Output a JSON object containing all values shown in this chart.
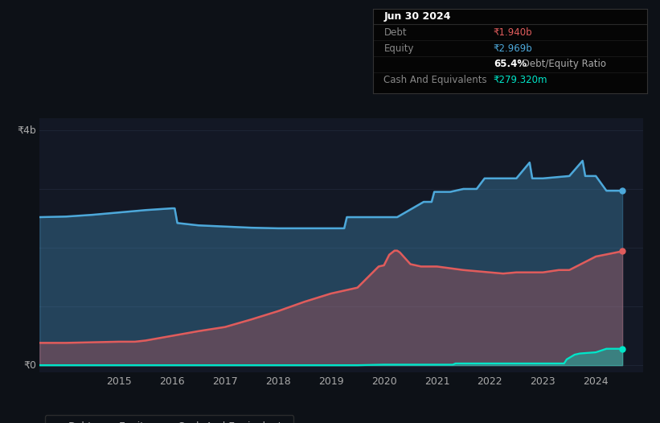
{
  "bg_color": "#0d1117",
  "plot_bg_color": "#131825",
  "debt_color": "#e05c5c",
  "equity_color": "#4da8da",
  "cash_color": "#00e5c8",
  "grid_color": "#1e2535",
  "text_color": "#aaaaaa",
  "ylabel_4b": "₹4b",
  "ylabel_0": "₹0",
  "xlim": [
    2013.5,
    2024.9
  ],
  "ylim": [
    -0.12,
    4.2
  ],
  "xticks": [
    2015,
    2016,
    2017,
    2018,
    2019,
    2020,
    2021,
    2022,
    2023,
    2024
  ],
  "yticks_grid": [
    0.0,
    1.0,
    2.0,
    3.0,
    4.0
  ],
  "ytick_4b_val": 4.0,
  "ytick_0_val": 0.0,
  "debt_x": [
    2013.5,
    2014.0,
    2014.5,
    2015.0,
    2015.3,
    2015.5,
    2016.0,
    2016.5,
    2017.0,
    2017.5,
    2018.0,
    2018.5,
    2019.0,
    2019.3,
    2019.5,
    2019.7,
    2019.9,
    2020.0,
    2020.1,
    2020.2,
    2020.25,
    2020.3,
    2020.5,
    2020.7,
    2021.0,
    2021.5,
    2022.0,
    2022.25,
    2022.5,
    2023.0,
    2023.3,
    2023.5,
    2024.0,
    2024.5
  ],
  "debt_y": [
    0.38,
    0.38,
    0.39,
    0.4,
    0.4,
    0.42,
    0.5,
    0.58,
    0.65,
    0.78,
    0.92,
    1.08,
    1.22,
    1.28,
    1.32,
    1.5,
    1.68,
    1.7,
    1.88,
    1.95,
    1.95,
    1.92,
    1.72,
    1.68,
    1.68,
    1.62,
    1.58,
    1.56,
    1.58,
    1.58,
    1.62,
    1.62,
    1.85,
    1.94
  ],
  "equity_x": [
    2013.5,
    2014.0,
    2014.5,
    2015.0,
    2015.5,
    2016.0,
    2016.05,
    2016.1,
    2016.5,
    2017.0,
    2017.5,
    2018.0,
    2018.5,
    2019.0,
    2019.25,
    2019.3,
    2019.5,
    2019.75,
    2020.0,
    2020.1,
    2020.25,
    2020.5,
    2020.75,
    2020.9,
    2020.95,
    2021.0,
    2021.25,
    2021.5,
    2021.75,
    2021.9,
    2021.95,
    2022.0,
    2022.5,
    2022.75,
    2022.8,
    2023.0,
    2023.5,
    2023.75,
    2023.8,
    2024.0,
    2024.2,
    2024.5
  ],
  "equity_y": [
    2.52,
    2.53,
    2.56,
    2.6,
    2.64,
    2.67,
    2.67,
    2.42,
    2.38,
    2.36,
    2.34,
    2.33,
    2.33,
    2.33,
    2.33,
    2.52,
    2.52,
    2.52,
    2.52,
    2.52,
    2.52,
    2.65,
    2.78,
    2.78,
    2.95,
    2.95,
    2.95,
    3.0,
    3.0,
    3.18,
    3.18,
    3.18,
    3.18,
    3.45,
    3.18,
    3.18,
    3.22,
    3.48,
    3.22,
    3.22,
    2.97,
    2.97
  ],
  "cash_x": [
    2013.5,
    2014.0,
    2015.0,
    2016.0,
    2017.0,
    2018.0,
    2019.0,
    2019.5,
    2020.0,
    2020.5,
    2021.0,
    2021.3,
    2021.35,
    2021.5,
    2022.0,
    2022.5,
    2023.0,
    2023.4,
    2023.45,
    2023.6,
    2023.7,
    2024.0,
    2024.2,
    2024.5
  ],
  "cash_y": [
    0.0,
    0.0,
    0.0,
    0.0,
    0.0,
    0.0,
    0.0,
    0.0,
    0.01,
    0.01,
    0.01,
    0.01,
    0.03,
    0.03,
    0.03,
    0.03,
    0.03,
    0.03,
    0.1,
    0.18,
    0.2,
    0.22,
    0.28,
    0.28
  ],
  "legend_items": [
    {
      "label": "Debt",
      "color": "#e05c5c"
    },
    {
      "label": "Equity",
      "color": "#4da8da"
    },
    {
      "label": "Cash And Equivalents",
      "color": "#00e5c8"
    }
  ],
  "tooltip_title": "Jun 30 2024",
  "tooltip_rows": [
    {
      "label": "Debt",
      "value": "₹1.940b",
      "value_color": "#e05c5c",
      "bold_val": false
    },
    {
      "label": "Equity",
      "value": "₹2.969b",
      "value_color": "#4da8da",
      "bold_val": false
    },
    {
      "label": "",
      "value": "65.4% Debt/Equity Ratio",
      "value_color": "#ffffff",
      "bold_val": true,
      "bold_part": "65.4%"
    },
    {
      "label": "Cash And Equivalents",
      "value": "₹279.320m",
      "value_color": "#00e5c8",
      "bold_val": false
    }
  ]
}
